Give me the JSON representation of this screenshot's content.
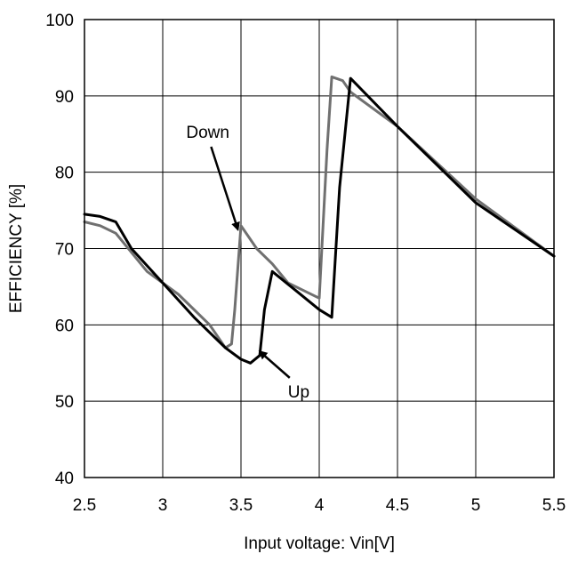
{
  "chart_data": {
    "type": "line",
    "xlabel": "Input voltage: Vin[V]",
    "ylabel": "EFFICIENCY [%]",
    "xlim": [
      2.5,
      5.5
    ],
    "ylim": [
      40,
      100
    ],
    "xticks": [
      "2.5",
      "3",
      "3.5",
      "4",
      "4.5",
      "5",
      "5.5"
    ],
    "yticks": [
      "40",
      "50",
      "60",
      "70",
      "80",
      "90",
      "100"
    ],
    "grid": true,
    "colors": {
      "black_series": "#000000",
      "gray_series": "#707070"
    },
    "series": [
      {
        "color": "#000000",
        "x": [
          2.5,
          2.6,
          2.7,
          2.8,
          3.0,
          3.2,
          3.4,
          3.5,
          3.56,
          3.62,
          3.65,
          3.7,
          3.85,
          4.0,
          4.08,
          4.13,
          4.2,
          4.5,
          5.0,
          5.5
        ],
        "y": [
          74.5,
          74.2,
          73.5,
          70.0,
          65.5,
          61.0,
          57.0,
          55.5,
          55.0,
          56.0,
          62.0,
          67.0,
          64.5,
          62.0,
          61.0,
          78.0,
          92.3,
          86.0,
          76.0,
          69.0
        ]
      },
      {
        "color": "#707070",
        "x": [
          2.5,
          2.6,
          2.7,
          2.9,
          3.1,
          3.3,
          3.4,
          3.44,
          3.46,
          3.5,
          3.55,
          3.6,
          3.7,
          3.8,
          3.9,
          4.0,
          4.05,
          4.08,
          4.15,
          4.2,
          4.5,
          5.0,
          5.5
        ],
        "y": [
          73.5,
          73.0,
          72.0,
          67.0,
          64.0,
          60.0,
          57.0,
          57.5,
          62.0,
          73.0,
          71.5,
          70.0,
          68.0,
          65.5,
          64.5,
          63.5,
          83.0,
          92.5,
          92.0,
          90.5,
          86.0,
          76.5,
          69.0
        ]
      }
    ],
    "annotations": [
      {
        "text": "Down",
        "x": 3.15,
        "y": 84.5,
        "arrow_to": [
          3.48,
          72.5
        ]
      },
      {
        "text": "Up",
        "x": 3.8,
        "y": 50.5,
        "arrow_to": [
          3.62,
          56.5
        ]
      }
    ]
  }
}
